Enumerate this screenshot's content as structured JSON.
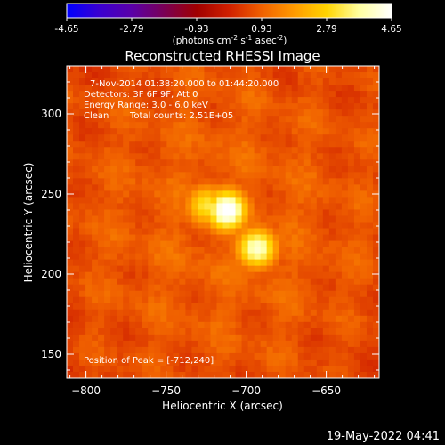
{
  "colorbar": {
    "ticks": [
      "-4.65",
      "-2.79",
      "-0.93",
      "0.93",
      "2.79",
      "4.65"
    ],
    "unit_prefix": "(photons cm",
    "unit_exp1": "-2",
    "unit_mid": " s",
    "unit_exp2": "-1",
    "unit_mid2": " asec",
    "unit_exp3": "-2",
    "unit_suffix": ")"
  },
  "chart_data": {
    "type": "heatmap",
    "title": "Reconstructed RHESSI Image",
    "xlabel": "Heliocentric X (arcsec)",
    "ylabel": "Heliocentric Y (arcsec)",
    "xlim": [
      -812,
      -617
    ],
    "ylim": [
      135,
      330
    ],
    "xticks": [
      -800,
      -750,
      -700,
      -650
    ],
    "yticks": [
      150,
      200,
      250,
      300
    ],
    "clim": [
      -4.65,
      4.65
    ],
    "colormap": [
      "#0000ff",
      "#3a00d0",
      "#5a00a8",
      "#7a0055",
      "#a00000",
      "#d02000",
      "#f06000",
      "#ff9a00",
      "#ffd400",
      "#ffffa0",
      "#ffffff"
    ],
    "sources": [
      {
        "x": -712,
        "y": 240,
        "peak": 4.65
      },
      {
        "x": -725,
        "y": 243,
        "peak": 2.9
      },
      {
        "x": -693,
        "y": 216,
        "peak": 3.9
      }
    ],
    "background_level": 0.95
  },
  "annotations": {
    "time_range": "7-Nov-2014 01:38:20.000 to 01:44:20.000",
    "detectors": "Detectors: 3F 6F 9F, Att 0",
    "energy_range": "Energy Range: 3.0 - 6.0 keV",
    "clean_label": "Clean",
    "total_counts": "Total counts: 2.51E+05",
    "peak_position": "Position of Peak = [-712,240]"
  },
  "footer": {
    "timestamp": "19-May-2022 04:41"
  }
}
